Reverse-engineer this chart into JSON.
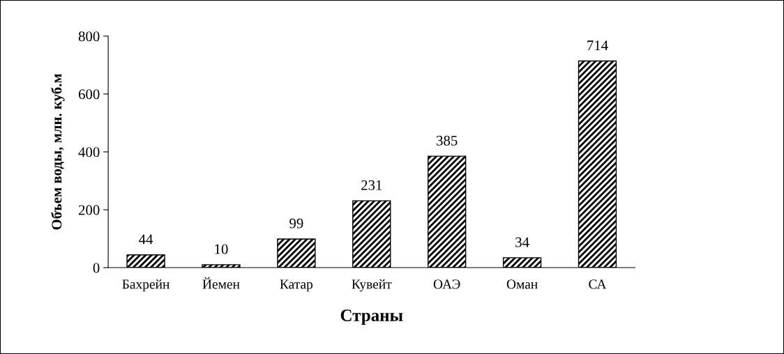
{
  "chart_data": {
    "type": "bar",
    "xlabel": "Страны",
    "ylabel": "Объем воды, млн. куб.м",
    "categories": [
      "Бахрейн",
      "Йемен",
      "Катар",
      "Кувейт",
      "ОАЭ",
      "Оман",
      "СА"
    ],
    "values": [
      44,
      10,
      99,
      231,
      385,
      34,
      714
    ],
    "color": "#000000",
    "ylim": [
      0,
      800
    ],
    "yticks": [
      0,
      200,
      400,
      600,
      800
    ],
    "grid": false,
    "data_labels": true
  }
}
